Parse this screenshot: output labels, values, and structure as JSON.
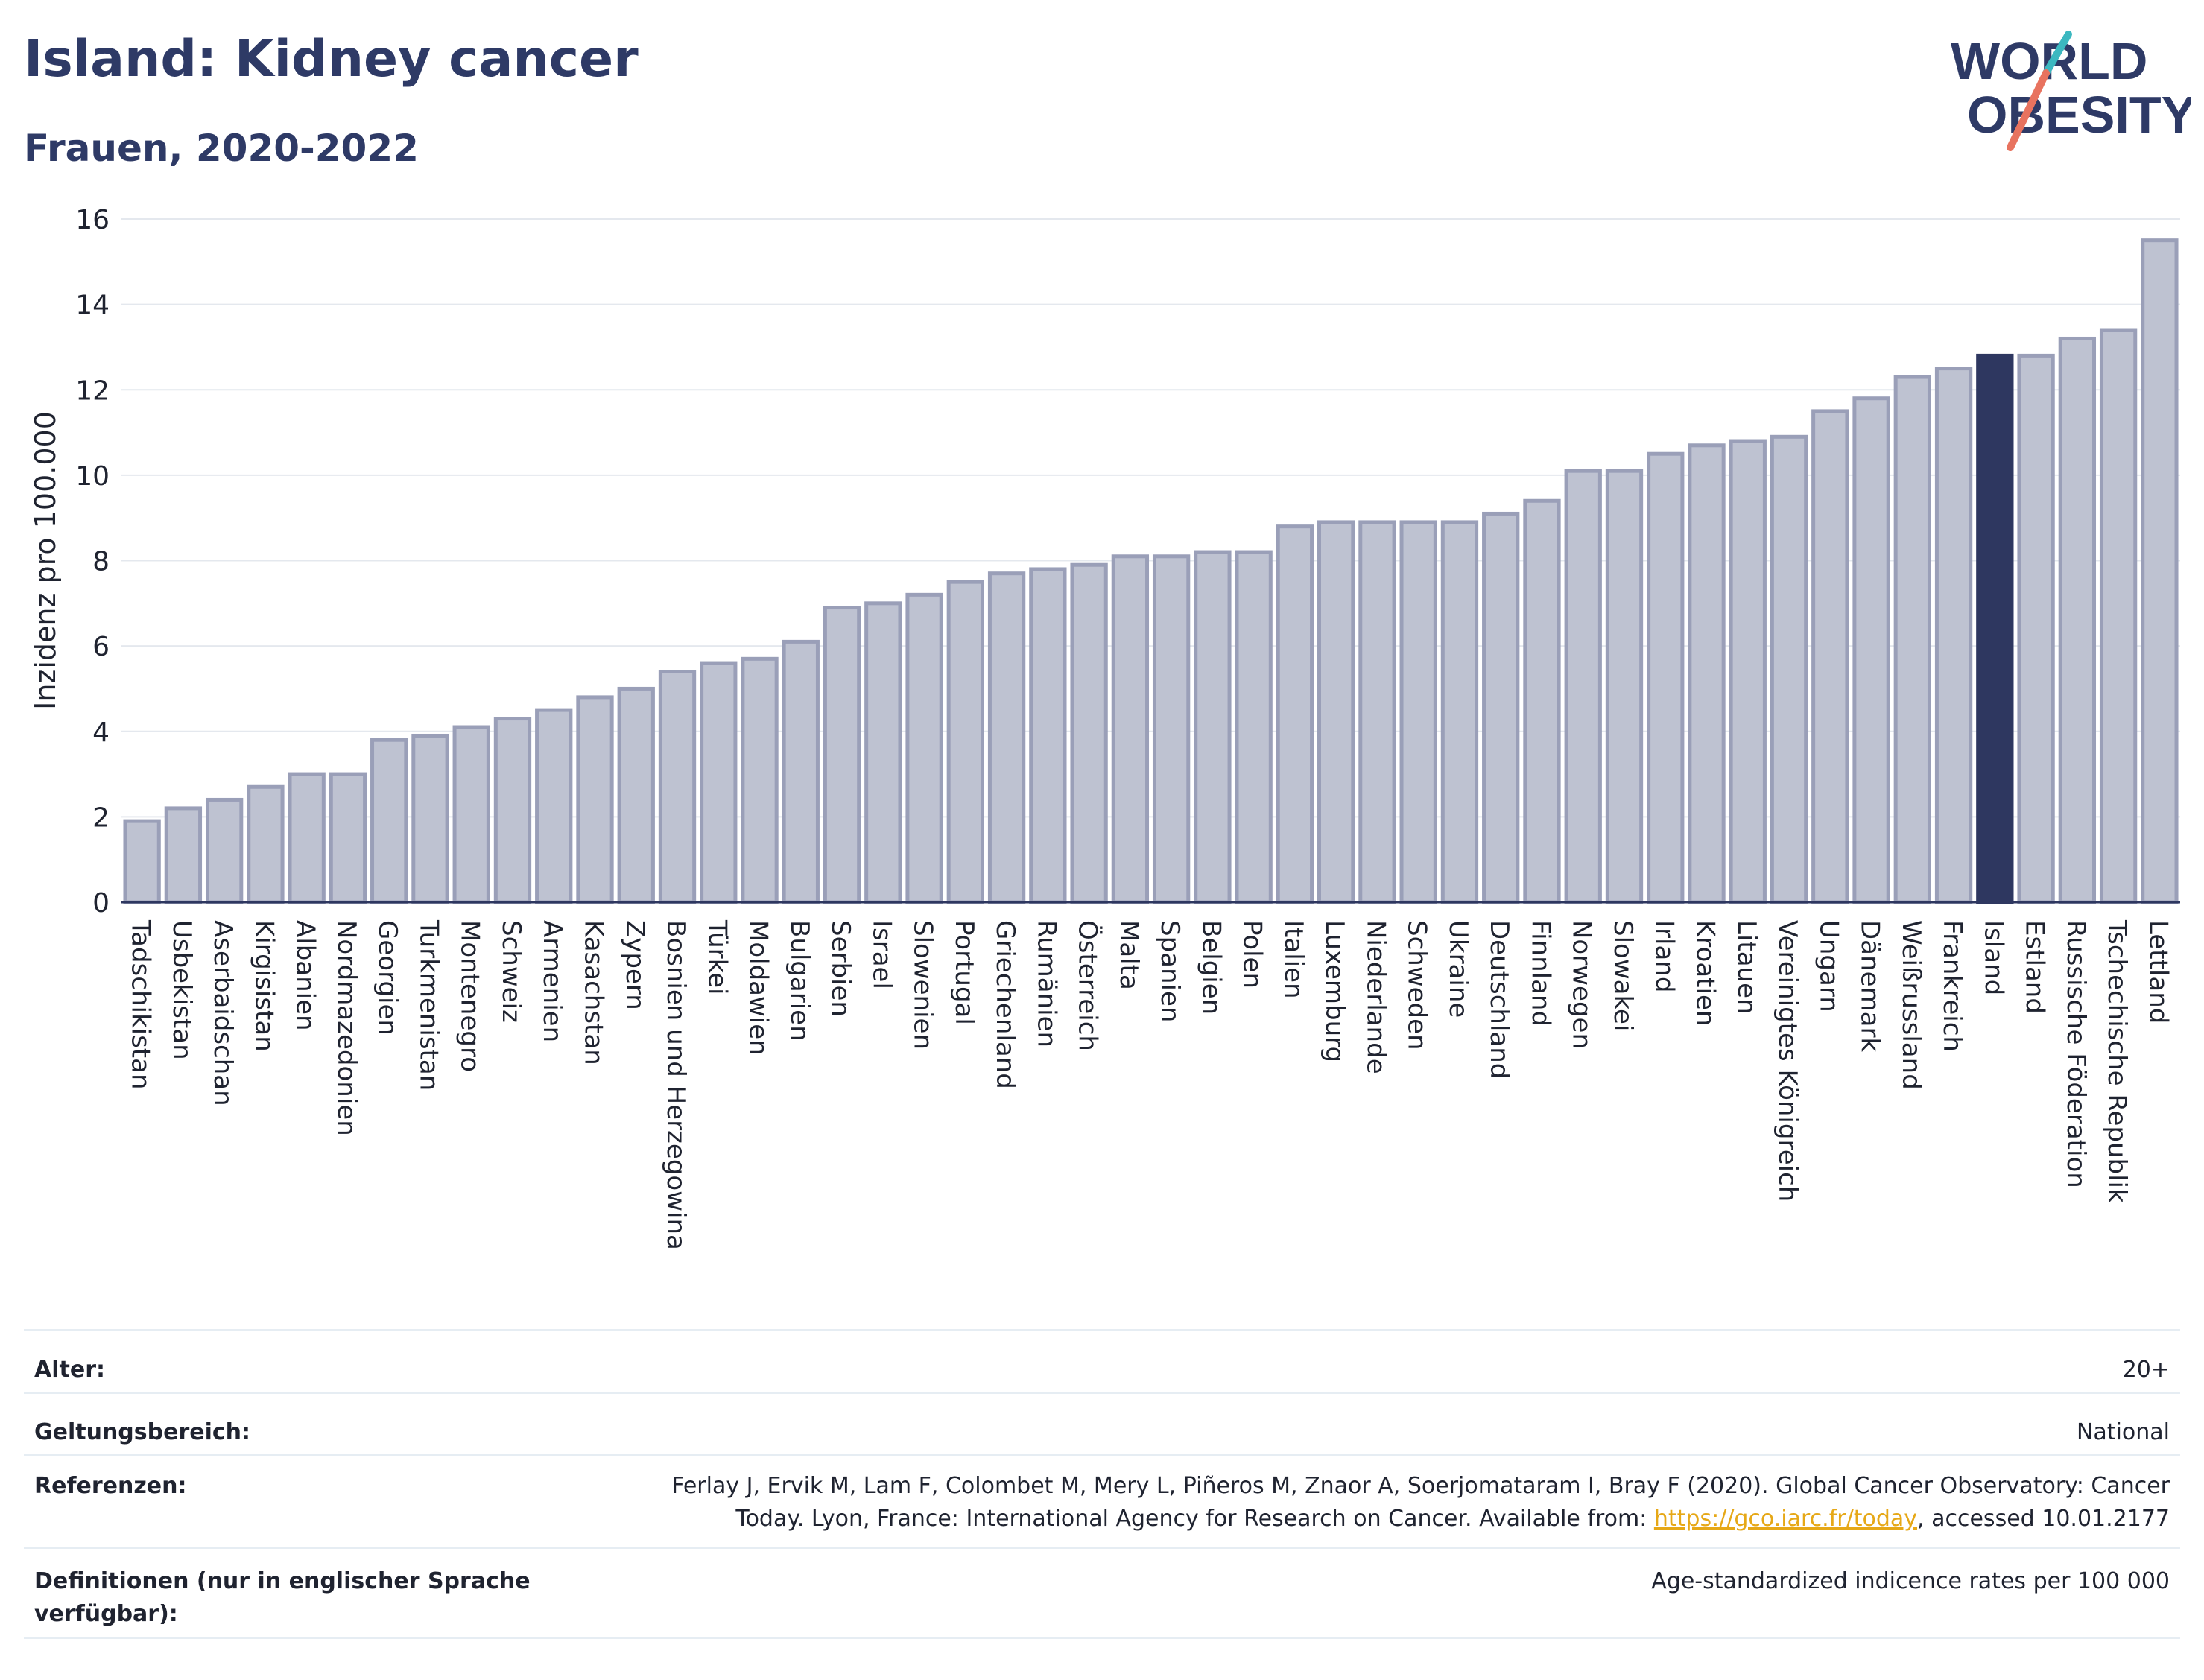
{
  "header": {
    "title": "Island: Kidney cancer",
    "subtitle": "Frauen, 2020-2022"
  },
  "logo": {
    "line1": "WORLD",
    "line2": "OBESITY"
  },
  "colors": {
    "bar": "#bec2d1",
    "bar_border": "#9a9fb8",
    "highlight": "#2e3760",
    "title": "#2e3a66",
    "link": "#e6a817"
  },
  "chart_data": {
    "type": "bar",
    "ylabel": "Inzidenz pro 100.000",
    "xlabel": "",
    "ylim": [
      0,
      16
    ],
    "yticks": [
      0,
      2,
      4,
      6,
      8,
      10,
      12,
      14,
      16
    ],
    "grid": true,
    "highlight": "Island",
    "categories": [
      "Tadschikistan",
      "Usbekistan",
      "Aserbaidschan",
      "Kirgisistan",
      "Albanien",
      "Nordmazedonien",
      "Georgien",
      "Turkmenistan",
      "Montenegro",
      "Schweiz",
      "Armenien",
      "Kasachstan",
      "Zypern",
      "Bosnien und Herzegowina",
      "Türkei",
      "Moldawien",
      "Bulgarien",
      "Serbien",
      "Israel",
      "Slowenien",
      "Portugal",
      "Griechenland",
      "Rumänien",
      "Österreich",
      "Malta",
      "Spanien",
      "Belgien",
      "Polen",
      "Italien",
      "Luxemburg",
      "Niederlande",
      "Schweden",
      "Ukraine",
      "Deutschland",
      "Finnland",
      "Norwegen",
      "Slowakei",
      "Irland",
      "Kroatien",
      "Litauen",
      "Vereinigtes Königreich",
      "Ungarn",
      "Dänemark",
      "Weißrussland",
      "Frankreich",
      "Island",
      "Estland",
      "Russische Föderation",
      "Tschechische Republik",
      "Lettland"
    ],
    "values": [
      1.9,
      2.2,
      2.4,
      2.7,
      3.0,
      3.0,
      3.8,
      3.9,
      4.1,
      4.3,
      4.5,
      4.8,
      5.0,
      5.4,
      5.6,
      5.7,
      6.1,
      6.9,
      7.0,
      7.2,
      7.5,
      7.7,
      7.8,
      7.9,
      8.1,
      8.1,
      8.2,
      8.2,
      8.8,
      8.9,
      8.9,
      8.9,
      8.9,
      9.1,
      9.4,
      10.1,
      10.1,
      10.5,
      10.7,
      10.8,
      10.9,
      11.5,
      11.8,
      12.3,
      12.5,
      12.8,
      12.8,
      13.2,
      13.4,
      15.5
    ]
  },
  "meta": {
    "age_label": "Alter:",
    "age_value": "20+",
    "scope_label": "Geltungsbereich:",
    "scope_value": "National",
    "ref_label": "Referenzen:",
    "ref_line1": "Ferlay J, Ervik M, Lam F, Colombet M, Mery L, Piñeros M, Znaor A, Soerjomataram I, Bray F (2020). Global Cancer Observatory: Cancer",
    "ref_line2_pre": "Today. Lyon, France: International Agency for Research on Cancer. Available from: ",
    "ref_link": "https://gco.iarc.fr/today",
    "ref_line2_post": ", accessed 10.01.2177",
    "def_label": "Definitionen (nur in englischer Sprache verfügbar):",
    "def_value": "Age-standardized indicence rates per 100 000"
  }
}
